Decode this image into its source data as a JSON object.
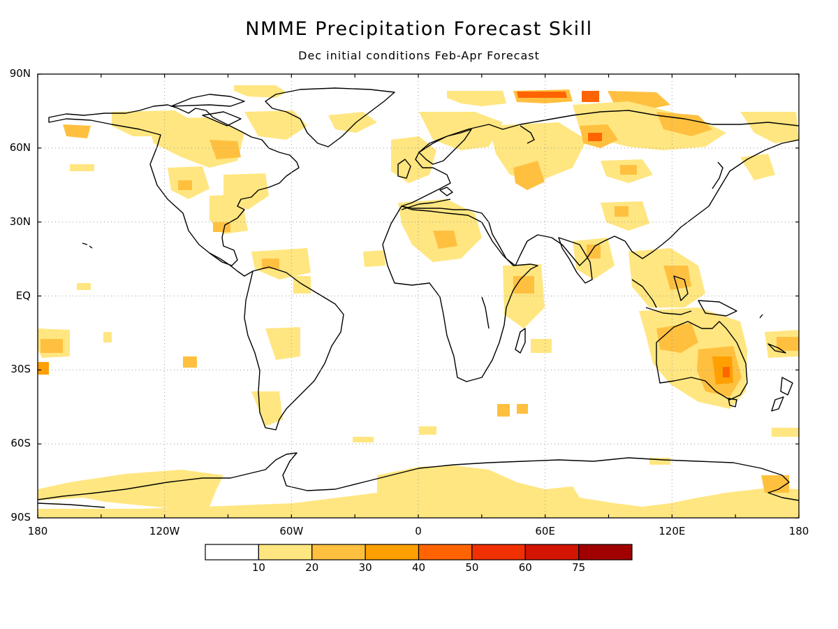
{
  "map": {
    "title": "NMME Precipitation Forecast Skill",
    "subtitle": "Dec initial conditions   Feb-Apr Forecast",
    "lat_labels": [
      "90N",
      "60N",
      "30N",
      "EQ",
      "30S",
      "60S",
      "90S"
    ],
    "lat_values": [
      90,
      60,
      30,
      0,
      -30,
      -60,
      -90
    ],
    "lon_labels": [
      "180",
      "120W",
      "60W",
      "0",
      "60E",
      "120E",
      "180"
    ],
    "lon_values": [
      -180,
      -120,
      -60,
      0,
      60,
      120,
      180
    ],
    "grid": true
  },
  "colorbar": {
    "labels": [
      "10",
      "20",
      "30",
      "40",
      "50",
      "60",
      "75"
    ],
    "colors": [
      "#ffffff",
      "#ffe680",
      "#ffc040",
      "#ffa000",
      "#ff6400",
      "#f03000",
      "#d21400",
      "#a00000"
    ]
  }
}
